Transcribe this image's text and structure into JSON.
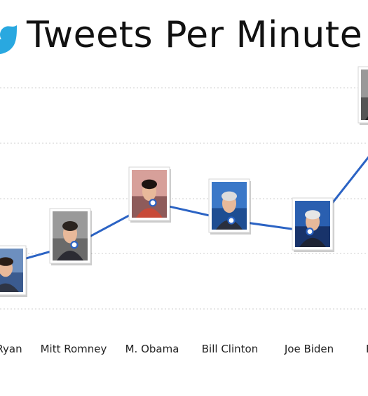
{
  "chart_data": {
    "type": "line",
    "title": "Tweets Per Minute",
    "categories": [
      "P. Ryan",
      "Mitt Romney",
      "M. Obama",
      "Bill Clinton",
      "Joe Biden",
      "B. Obama"
    ],
    "visible_category_text": [
      "Ryan",
      "Mitt Romney",
      "M. Obama",
      "Bill Clinton",
      "Joe Biden",
      "B"
    ],
    "series": [
      {
        "values": [
          6400,
          7400,
          9300,
          8500,
          8000,
          12500
        ]
      }
    ],
    "ylim": [
      4500,
      14500
    ],
    "grid": true,
    "legend": "none",
    "line_color": "#2b63c4",
    "speaker_photos": [
      "paul-ryan-photo",
      "mitt-romney-photo",
      "michelle-obama-photo",
      "bill-clinton-photo",
      "joe-biden-photo",
      "barack-obama-photo"
    ]
  },
  "brand_icon": "twitter-bird-icon",
  "brand_color": "#29a8e0"
}
